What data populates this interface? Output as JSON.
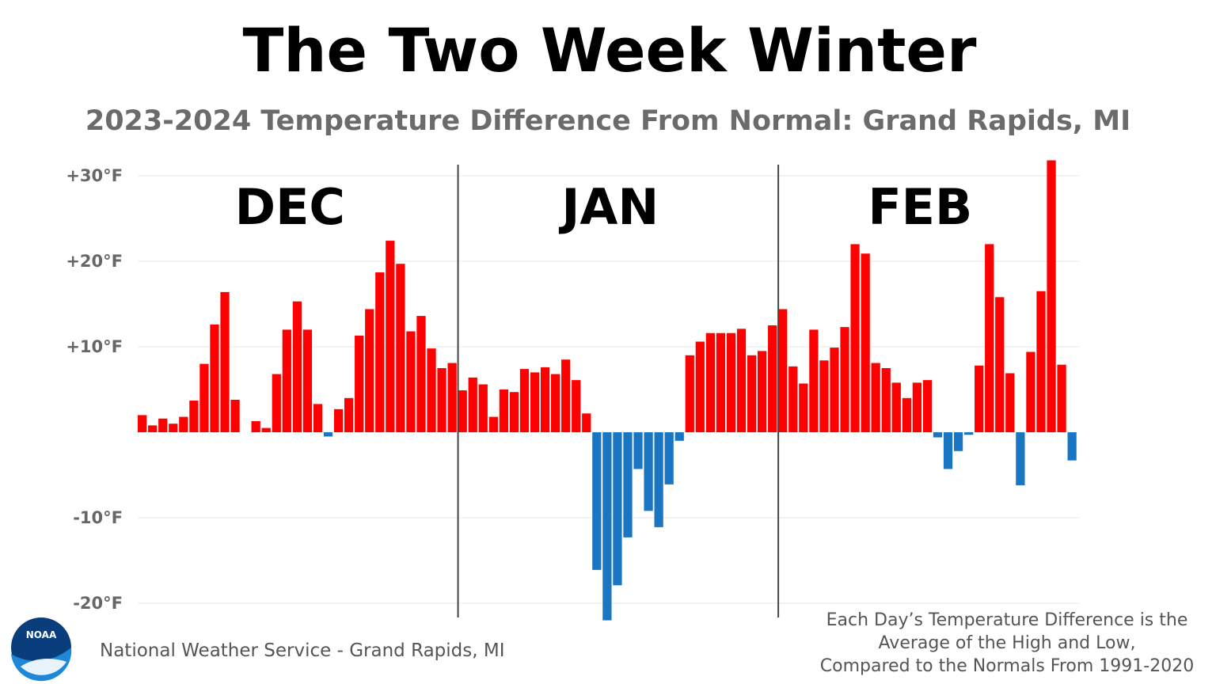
{
  "colors": {
    "above": "#ff0000",
    "below": "#1a75c2",
    "grid": "#e8e8e8",
    "divider": "#444444",
    "logo_dark": "#0a3d7c",
    "logo_light": "#1e88d8"
  },
  "footer": {
    "credit": "National Weather Service - Grand Rapids, MI",
    "note_lines": [
      "Each Day’s Temperature Difference is the",
      "Average of the High and Low,",
      "Compared to the Normals From 1991-2020"
    ]
  },
  "logo": {
    "text": "NOAA",
    "icon": "noaa-logo-icon"
  },
  "chart_data": {
    "type": "bar",
    "title": "The Two Week Winter",
    "subtitle": "2023-2024 Temperature Difference From Normal: Grand Rapids, MI",
    "xlabel": "",
    "ylabel": "",
    "ylim": [
      -22,
      32
    ],
    "yticks": [
      30,
      20,
      10,
      -10,
      -20
    ],
    "ytick_labels": [
      "+30°F",
      "+20°F",
      "+10°F",
      "-10°F",
      "-20°F"
    ],
    "grid": true,
    "months": [
      {
        "label": "DEC",
        "start": 0,
        "days": 31
      },
      {
        "label": "JAN",
        "start": 31,
        "days": 31
      },
      {
        "label": "FEB",
        "start": 62,
        "days": 29
      }
    ],
    "values": [
      2,
      0.8,
      1.6,
      1,
      1.8,
      3.7,
      8,
      12.6,
      16.4,
      3.8,
      0,
      1.3,
      0.5,
      6.8,
      12,
      15.3,
      12,
      3.3,
      -0.5,
      2.7,
      4,
      11.3,
      14.4,
      18.7,
      22.4,
      19.7,
      11.8,
      13.6,
      9.8,
      7.5,
      8.1,
      4.9,
      6.4,
      5.6,
      1.8,
      5,
      4.7,
      7.4,
      7,
      7.6,
      6.8,
      8.5,
      6.1,
      2.2,
      -16.1,
      -22,
      -17.9,
      -12.3,
      -4.3,
      -9.2,
      -11.1,
      -6.1,
      -1,
      9,
      10.6,
      11.6,
      11.6,
      11.6,
      12.1,
      9,
      9.5,
      12.5,
      14.4,
      7.7,
      5.7,
      12,
      8.4,
      9.9,
      12.3,
      22,
      20.9,
      8.1,
      7.5,
      5.8,
      4,
      5.8,
      6.1,
      -0.6,
      -4.3,
      -2.2,
      -0.3,
      7.8,
      22,
      15.8,
      6.9,
      -6.2,
      9.4,
      16.5,
      31.8,
      7.9,
      -3.3
    ]
  }
}
